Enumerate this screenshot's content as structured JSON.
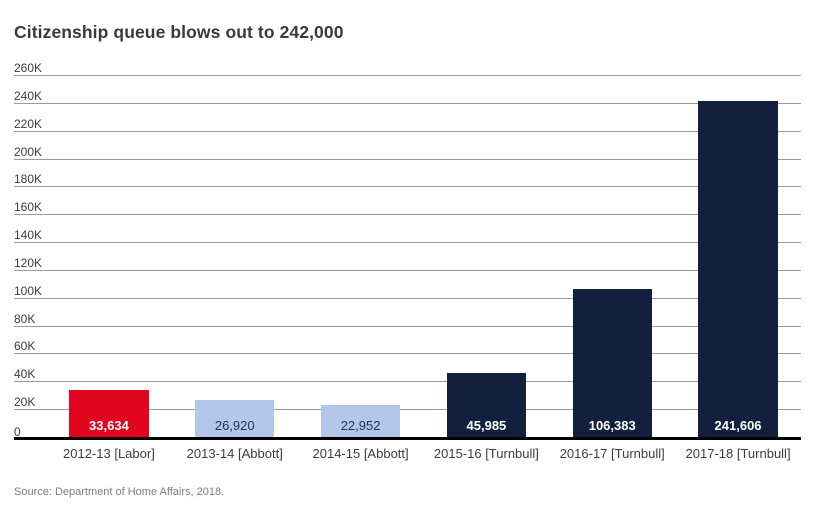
{
  "chart_data": {
    "type": "bar",
    "title": "Citizenship queue blows out to 242,000",
    "categories": [
      "2012-13 [Labor]",
      "2013-14 [Abbott]",
      "2014-15 [Abbott]",
      "2015-16 [Turnbull]",
      "2016-17 [Turnbull]",
      "2017-18 [Turnbull]"
    ],
    "values": [
      33634,
      26920,
      22952,
      45985,
      106383,
      241606
    ],
    "value_labels": [
      "33,634",
      "26,920",
      "22,952",
      "45,985",
      "106,383",
      "241,606"
    ],
    "bar_colors": [
      "#e1041f",
      "#b3c7e9",
      "#b3c7e9",
      "#13203d",
      "#13203d",
      "#13203d"
    ],
    "value_label_colors": [
      "#ffffff",
      "#29334e",
      "#29334e",
      "#ffffff",
      "#ffffff",
      "#ffffff"
    ],
    "xlabel": "",
    "ylabel": "",
    "ylim": [
      0,
      260000
    ],
    "y_ticks": [
      {
        "label": "260K",
        "value": 260000
      },
      {
        "label": "240K",
        "value": 240000
      },
      {
        "label": "220K",
        "value": 220000
      },
      {
        "label": "200K",
        "value": 200000
      },
      {
        "label": "180K",
        "value": 180000
      },
      {
        "label": "160K",
        "value": 160000
      },
      {
        "label": "140K",
        "value": 140000
      },
      {
        "label": "120K",
        "value": 120000
      },
      {
        "label": "100K",
        "value": 100000
      },
      {
        "label": "80K",
        "value": 80000
      },
      {
        "label": "60K",
        "value": 60000
      },
      {
        "label": "40K",
        "value": 40000
      },
      {
        "label": "20K",
        "value": 20000
      },
      {
        "label": "0",
        "value": 0
      }
    ],
    "grid": true,
    "legend": false,
    "colors": {
      "gridline": "#9b9b9b",
      "baseline": "#000000",
      "tick_text": "#3d3d3d",
      "category_text": "#3d3d3d",
      "title_text": "#3a3a3a",
      "source_text": "#7d7d7d",
      "background": "#ffffff"
    }
  },
  "source_note": "Source: Department of Home Affairs, 2018."
}
